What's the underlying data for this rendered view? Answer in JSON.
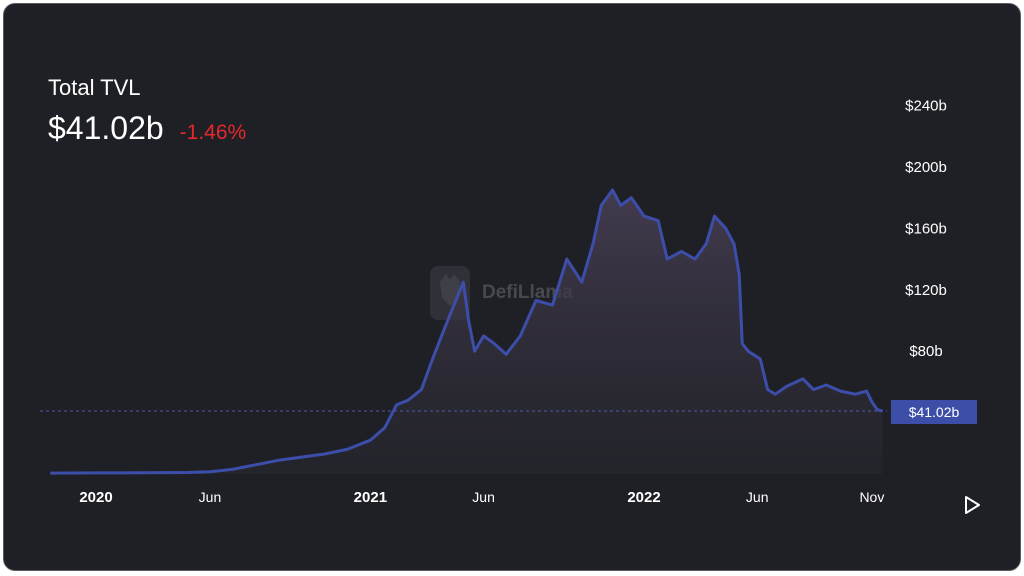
{
  "header": {
    "title": "Total TVL",
    "value": "$41.02b",
    "change": "-1.46%"
  },
  "watermark": {
    "text": "DefiLlama"
  },
  "colors": {
    "line": "#3d4eaa",
    "change_negative": "#e5282c",
    "background": "#1f2026",
    "badge": "#3d4ea8"
  },
  "icons": {
    "play": "play-icon",
    "logo": "llama-logo-icon"
  },
  "chart_data": {
    "type": "area",
    "title": "",
    "xlabel": "",
    "ylabel": "",
    "ylim": [
      0,
      250
    ],
    "y_ticks": [
      80,
      120,
      160,
      200,
      240
    ],
    "y_tick_labels": [
      "$80b",
      "$120b",
      "$160b",
      "$200b",
      "$240b"
    ],
    "x_ticks": [
      "2020-01-01",
      "2020-06-01",
      "2021-01-01",
      "2021-06-01",
      "2022-01-01",
      "2022-06-01",
      "2022-11-01"
    ],
    "x_tick_labels": [
      "2020",
      "Jun",
      "2021",
      "Jun",
      "2022",
      "Jun",
      "Nov"
    ],
    "current_value": 41.02,
    "current_value_label": "$41.02b",
    "series": [
      {
        "x": [
          "2019-11-01",
          "2020-01-01",
          "2020-03-01",
          "2020-05-01",
          "2020-06-01",
          "2020-07-01",
          "2020-08-01",
          "2020-09-01",
          "2020-10-01",
          "2020-11-01",
          "2020-12-01",
          "2021-01-01",
          "2021-01-20",
          "2021-02-05",
          "2021-02-20",
          "2021-03-10",
          "2021-03-25",
          "2021-04-10",
          "2021-04-25",
          "2021-05-05",
          "2021-05-12",
          "2021-05-20",
          "2021-06-01",
          "2021-06-15",
          "2021-07-01",
          "2021-07-20",
          "2021-08-10",
          "2021-09-01",
          "2021-09-20",
          "2021-10-10",
          "2021-10-25",
          "2021-11-05",
          "2021-11-20",
          "2021-12-01",
          "2021-12-15",
          "2022-01-01",
          "2022-01-20",
          "2022-02-01",
          "2022-02-20",
          "2022-03-10",
          "2022-03-25",
          "2022-04-05",
          "2022-04-20",
          "2022-05-01",
          "2022-05-08",
          "2022-05-12",
          "2022-05-20",
          "2022-06-05",
          "2022-06-15",
          "2022-06-25",
          "2022-07-10",
          "2022-08-01",
          "2022-08-15",
          "2022-09-01",
          "2022-09-20",
          "2022-10-10",
          "2022-10-25",
          "2022-11-01",
          "2022-11-08",
          "2022-11-15"
        ],
        "values": [
          0.6,
          0.7,
          0.8,
          1,
          1.5,
          3,
          6,
          9,
          11,
          13,
          16,
          22,
          30,
          45,
          48,
          55,
          75,
          95,
          113,
          125,
          100,
          80,
          90,
          85,
          78,
          90,
          113,
          110,
          140,
          125,
          150,
          175,
          185,
          175,
          180,
          168,
          165,
          140,
          145,
          140,
          150,
          168,
          160,
          150,
          130,
          85,
          80,
          75,
          55,
          52,
          57,
          62,
          55,
          58,
          54,
          52,
          54,
          47,
          42,
          41
        ]
      }
    ]
  }
}
